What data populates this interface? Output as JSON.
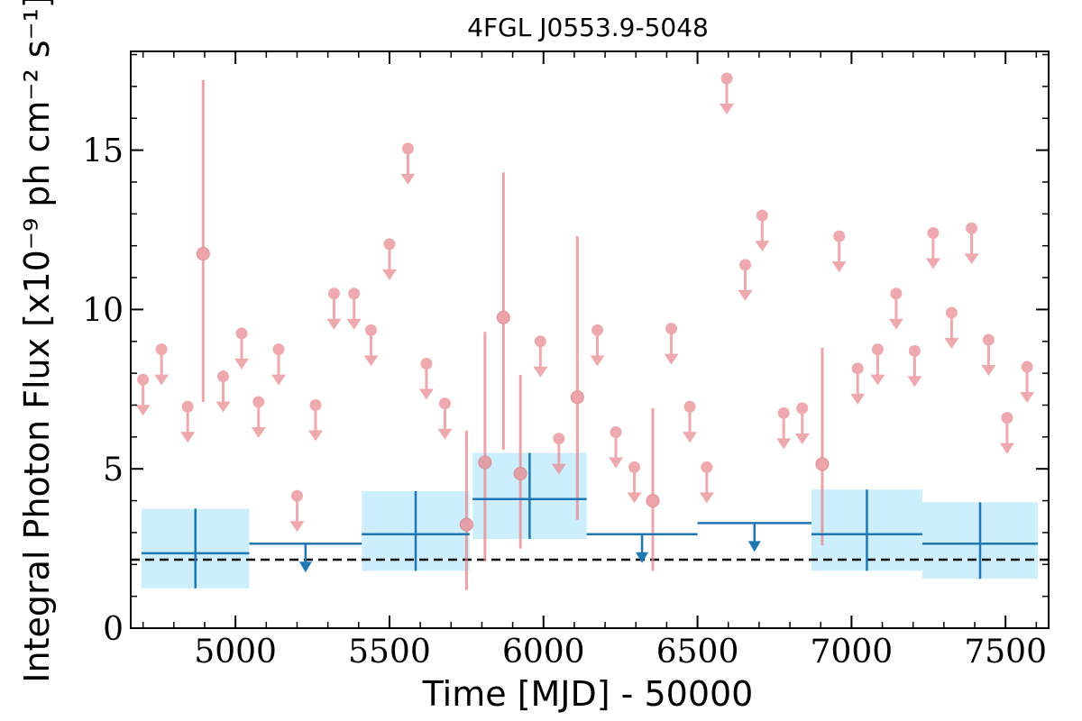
{
  "chart_data": {
    "type": "scatter",
    "title": "4FGL J0553.9-5048",
    "xlabel": "Time [MJD] - 50000",
    "ylabel": "Integral Photon Flux [x10⁻⁹ ph cm⁻² s⁻¹]",
    "xlim": [
      4660,
      7640
    ],
    "ylim": [
      0,
      18.1
    ],
    "xticks": [
      5000,
      5500,
      6000,
      6500,
      7000,
      7500
    ],
    "yticks": [
      0,
      5,
      10,
      15
    ],
    "grid": false,
    "baseline_flux": 2.15,
    "colors": {
      "short_bins": "#e8868c",
      "long_bins": "#1f77b4",
      "long_bin_band": "#cdeefc",
      "baseline": "#000000"
    },
    "short_bin_upper_limits": [
      {
        "x": 4700,
        "y": 7.8
      },
      {
        "x": 4760,
        "y": 8.75
      },
      {
        "x": 4845,
        "y": 6.95
      },
      {
        "x": 4960,
        "y": 7.9
      },
      {
        "x": 5020,
        "y": 9.25
      },
      {
        "x": 5075,
        "y": 7.1
      },
      {
        "x": 5140,
        "y": 8.75
      },
      {
        "x": 5200,
        "y": 4.15
      },
      {
        "x": 5260,
        "y": 7.0
      },
      {
        "x": 5320,
        "y": 10.5
      },
      {
        "x": 5385,
        "y": 10.5
      },
      {
        "x": 5440,
        "y": 9.35
      },
      {
        "x": 5500,
        "y": 12.05
      },
      {
        "x": 5560,
        "y": 15.05
      },
      {
        "x": 5620,
        "y": 8.3
      },
      {
        "x": 5680,
        "y": 7.05
      },
      {
        "x": 5990,
        "y": 9.0
      },
      {
        "x": 6050,
        "y": 5.95
      },
      {
        "x": 6175,
        "y": 9.35
      },
      {
        "x": 6235,
        "y": 6.15
      },
      {
        "x": 6295,
        "y": 5.05
      },
      {
        "x": 6415,
        "y": 9.4
      },
      {
        "x": 6475,
        "y": 6.95
      },
      {
        "x": 6530,
        "y": 5.05
      },
      {
        "x": 6595,
        "y": 17.25
      },
      {
        "x": 6655,
        "y": 11.4
      },
      {
        "x": 6710,
        "y": 12.95
      },
      {
        "x": 6780,
        "y": 6.75
      },
      {
        "x": 6840,
        "y": 6.9
      },
      {
        "x": 6960,
        "y": 12.3
      },
      {
        "x": 7020,
        "y": 8.15
      },
      {
        "x": 7085,
        "y": 8.75
      },
      {
        "x": 7145,
        "y": 10.5
      },
      {
        "x": 7205,
        "y": 8.7
      },
      {
        "x": 7265,
        "y": 12.4
      },
      {
        "x": 7325,
        "y": 9.9
      },
      {
        "x": 7390,
        "y": 12.55
      },
      {
        "x": 7445,
        "y": 9.05
      },
      {
        "x": 7505,
        "y": 6.6
      },
      {
        "x": 7570,
        "y": 8.2
      }
    ],
    "short_bin_detections": [
      {
        "x": 4895,
        "y": 11.75,
        "ylo": 7.1,
        "yhi": 17.2
      },
      {
        "x": 5750,
        "y": 3.25,
        "ylo": 1.2,
        "yhi": 6.2
      },
      {
        "x": 5810,
        "y": 5.2,
        "ylo": 2.1,
        "yhi": 9.3
      },
      {
        "x": 5870,
        "y": 9.75,
        "ylo": 5.6,
        "yhi": 14.3
      },
      {
        "x": 5925,
        "y": 4.85,
        "ylo": 2.5,
        "yhi": 7.95
      },
      {
        "x": 6110,
        "y": 7.25,
        "ylo": 3.4,
        "yhi": 12.3
      },
      {
        "x": 6355,
        "y": 4.0,
        "ylo": 1.8,
        "yhi": 6.9
      },
      {
        "x": 6905,
        "y": 5.15,
        "ylo": 2.6,
        "yhi": 8.8
      }
    ],
    "long_bin_detections": [
      {
        "x0": 4695,
        "x1": 5045,
        "y": 2.35,
        "ylo": 1.25,
        "yhi": 3.75
      },
      {
        "x0": 5410,
        "x1": 5760,
        "y": 2.95,
        "ylo": 1.8,
        "yhi": 4.3
      },
      {
        "x0": 5770,
        "x1": 6140,
        "y": 4.05,
        "ylo": 2.8,
        "yhi": 5.5
      },
      {
        "x0": 6870,
        "x1": 7230,
        "y": 2.95,
        "ylo": 1.8,
        "yhi": 4.35
      },
      {
        "x0": 7230,
        "x1": 7605,
        "y": 2.65,
        "ylo": 1.55,
        "yhi": 3.95
      }
    ],
    "long_bin_upper_limits": [
      {
        "x0": 5045,
        "x1": 5410,
        "y": 2.65
      },
      {
        "x0": 6140,
        "x1": 6500,
        "y": 2.95
      },
      {
        "x0": 6500,
        "x1": 6870,
        "y": 3.3
      }
    ]
  }
}
